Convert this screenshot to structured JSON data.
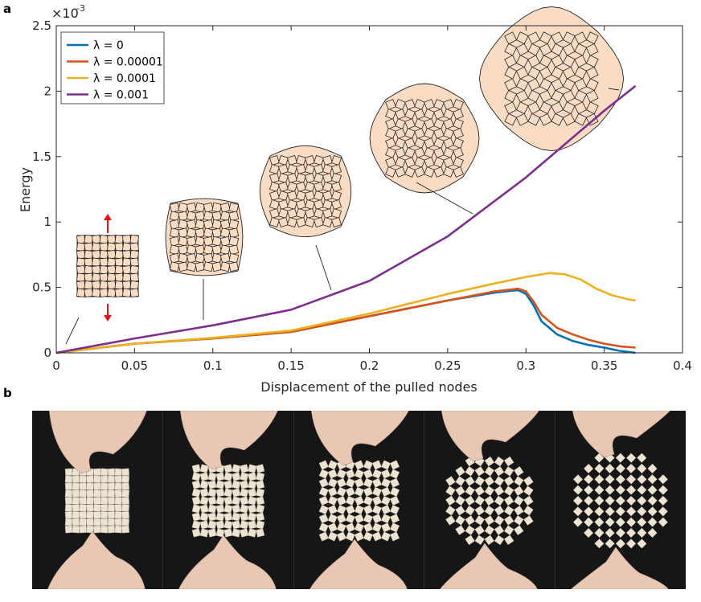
{
  "panels": {
    "a_label": "a",
    "b_label": "b"
  },
  "chart_data": {
    "type": "line",
    "xlabel": "Displacement of the pulled nodes",
    "ylabel": "Energy",
    "xlim": [
      0,
      0.4
    ],
    "ylim": [
      0,
      0.0025
    ],
    "y_exponent_label": "×10",
    "y_exponent": "-3",
    "x_ticks": [
      "0",
      "0.05",
      "0.1",
      "0.15",
      "0.2",
      "0.25",
      "0.3",
      "0.35",
      "0.4"
    ],
    "y_ticks": [
      "0",
      "0.5",
      "1",
      "1.5",
      "2",
      "2.5"
    ],
    "legend_position": "top-left",
    "series": [
      {
        "name": "λ = 0",
        "color": "#0072BD",
        "x": [
          0,
          0.05,
          0.1,
          0.15,
          0.2,
          0.25,
          0.28,
          0.295,
          0.3,
          0.305,
          0.31,
          0.32,
          0.33,
          0.34,
          0.35,
          0.36,
          0.37
        ],
        "y": [
          0,
          7e-05,
          0.00011,
          0.00016,
          0.00028,
          0.0004,
          0.00046,
          0.00048,
          0.00045,
          0.00036,
          0.00024,
          0.00014,
          9e-05,
          6e-05,
          4e-05,
          1.5e-05,
          0
        ]
      },
      {
        "name": "λ = 0.00001",
        "color": "#D95319",
        "x": [
          0,
          0.05,
          0.1,
          0.15,
          0.2,
          0.25,
          0.28,
          0.295,
          0.3,
          0.305,
          0.31,
          0.32,
          0.33,
          0.34,
          0.35,
          0.36,
          0.37
        ],
        "y": [
          0,
          7e-05,
          0.00011,
          0.00016,
          0.00028,
          0.0004,
          0.00047,
          0.00049,
          0.00047,
          0.00039,
          0.00029,
          0.00019,
          0.00014,
          0.0001,
          7e-05,
          5e-05,
          4e-05
        ]
      },
      {
        "name": "λ = 0.0001",
        "color": "#EDB120",
        "x": [
          0,
          0.05,
          0.1,
          0.15,
          0.2,
          0.25,
          0.28,
          0.3,
          0.315,
          0.325,
          0.335,
          0.345,
          0.355,
          0.365,
          0.37
        ],
        "y": [
          0,
          7e-05,
          0.000115,
          0.00017,
          0.0003,
          0.00045,
          0.00053,
          0.00058,
          0.00061,
          0.0006,
          0.00056,
          0.00049,
          0.00044,
          0.00041,
          0.0004
        ]
      },
      {
        "name": "λ = 0.001",
        "color": "#7E2F8E",
        "x": [
          0,
          0.05,
          0.1,
          0.15,
          0.2,
          0.25,
          0.3,
          0.35,
          0.37
        ],
        "y": [
          0,
          0.00011,
          0.00021,
          0.00033,
          0.00055,
          0.00089,
          0.00134,
          0.00185,
          0.00204
        ]
      }
    ]
  },
  "photo_panel": {
    "frame_count": 5,
    "sheet_color": "#ece3d2",
    "background": "#161616",
    "skin_color": "#e8c8b4"
  }
}
